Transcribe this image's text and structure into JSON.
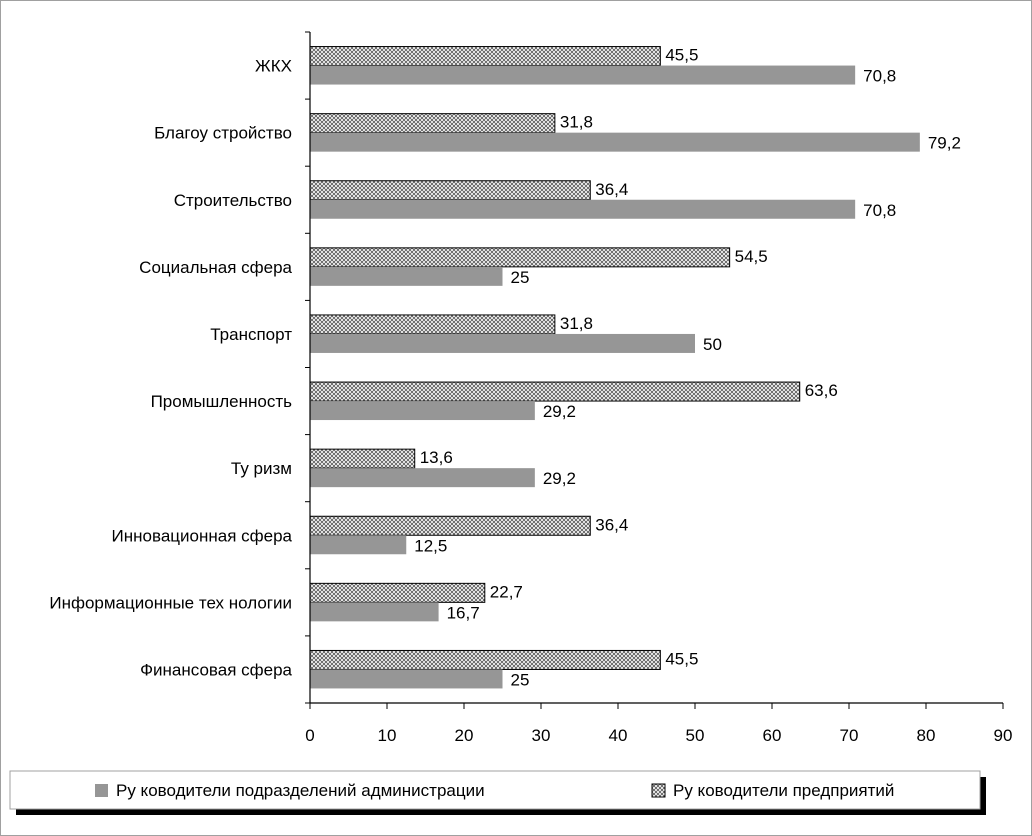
{
  "chart_data": {
    "type": "bar",
    "orientation": "horizontal",
    "categories": [
      "ЖКХ",
      "Благоу стройство",
      "Строительство",
      "Социальная сфера",
      "Транспорт",
      "Промышленность",
      "Ту ризм",
      "Инновационная сфера",
      "Информационные тех нологии",
      "Финансовая сфера"
    ],
    "series": [
      {
        "name": "Ру ководители предприятий",
        "values": [
          45.5,
          31.8,
          36.4,
          54.5,
          31.8,
          63.6,
          13.6,
          36.4,
          22.7,
          45.5
        ],
        "labels": [
          "45,5",
          "31,8",
          "36,4",
          "54,5",
          "31,8",
          "63,6",
          "13,6",
          "36,4",
          "22,7",
          "45,5"
        ],
        "fill": "crosshatch",
        "color": "#d9d9d9"
      },
      {
        "name": "Ру ководители подразделений администрации",
        "values": [
          70.8,
          79.2,
          70.8,
          25,
          50,
          29.2,
          29.2,
          12.5,
          16.7,
          25
        ],
        "labels": [
          "70,8",
          "79,2",
          "70,8",
          "25",
          "50",
          "29,2",
          "29,2",
          "12,5",
          "16,7",
          "25"
        ],
        "fill": "solid",
        "color": "#969696"
      }
    ],
    "xlim": [
      0,
      90
    ],
    "xticks": [
      "0",
      "10",
      "20",
      "30",
      "40",
      "50",
      "60",
      "70",
      "80",
      "90"
    ],
    "grid": false,
    "legend_position": "bottom",
    "legend_order": [
      "Ру ководители подразделений администрации",
      "Ру ководители предприятий"
    ]
  }
}
